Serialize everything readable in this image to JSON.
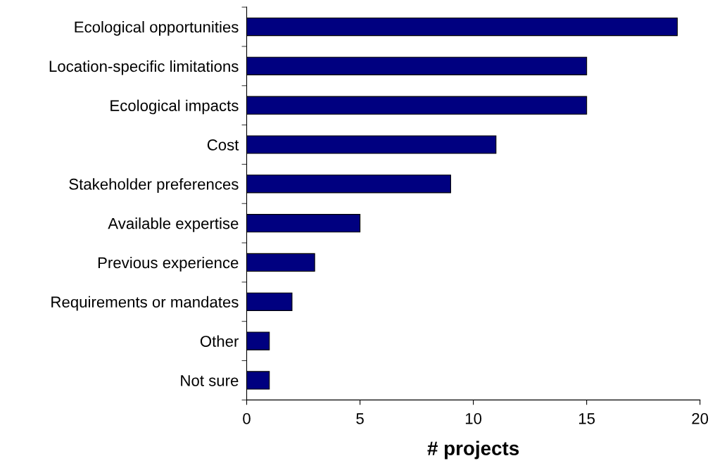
{
  "chart_data": {
    "type": "bar",
    "orientation": "horizontal",
    "xlabel": "# projects",
    "categories": [
      "Ecological opportunities",
      "Location-specific limitations",
      "Ecological impacts",
      "Cost",
      "Stakeholder preferences",
      "Available expertise",
      "Previous experience",
      "Requirements or mandates",
      "Other",
      "Not sure"
    ],
    "values": [
      19,
      15,
      15,
      11,
      9,
      5,
      3,
      2,
      1,
      1
    ],
    "color": "#000080",
    "xlim": [
      0,
      20
    ],
    "xticks": [
      0,
      5,
      10,
      15,
      20
    ],
    "grid": false
  }
}
